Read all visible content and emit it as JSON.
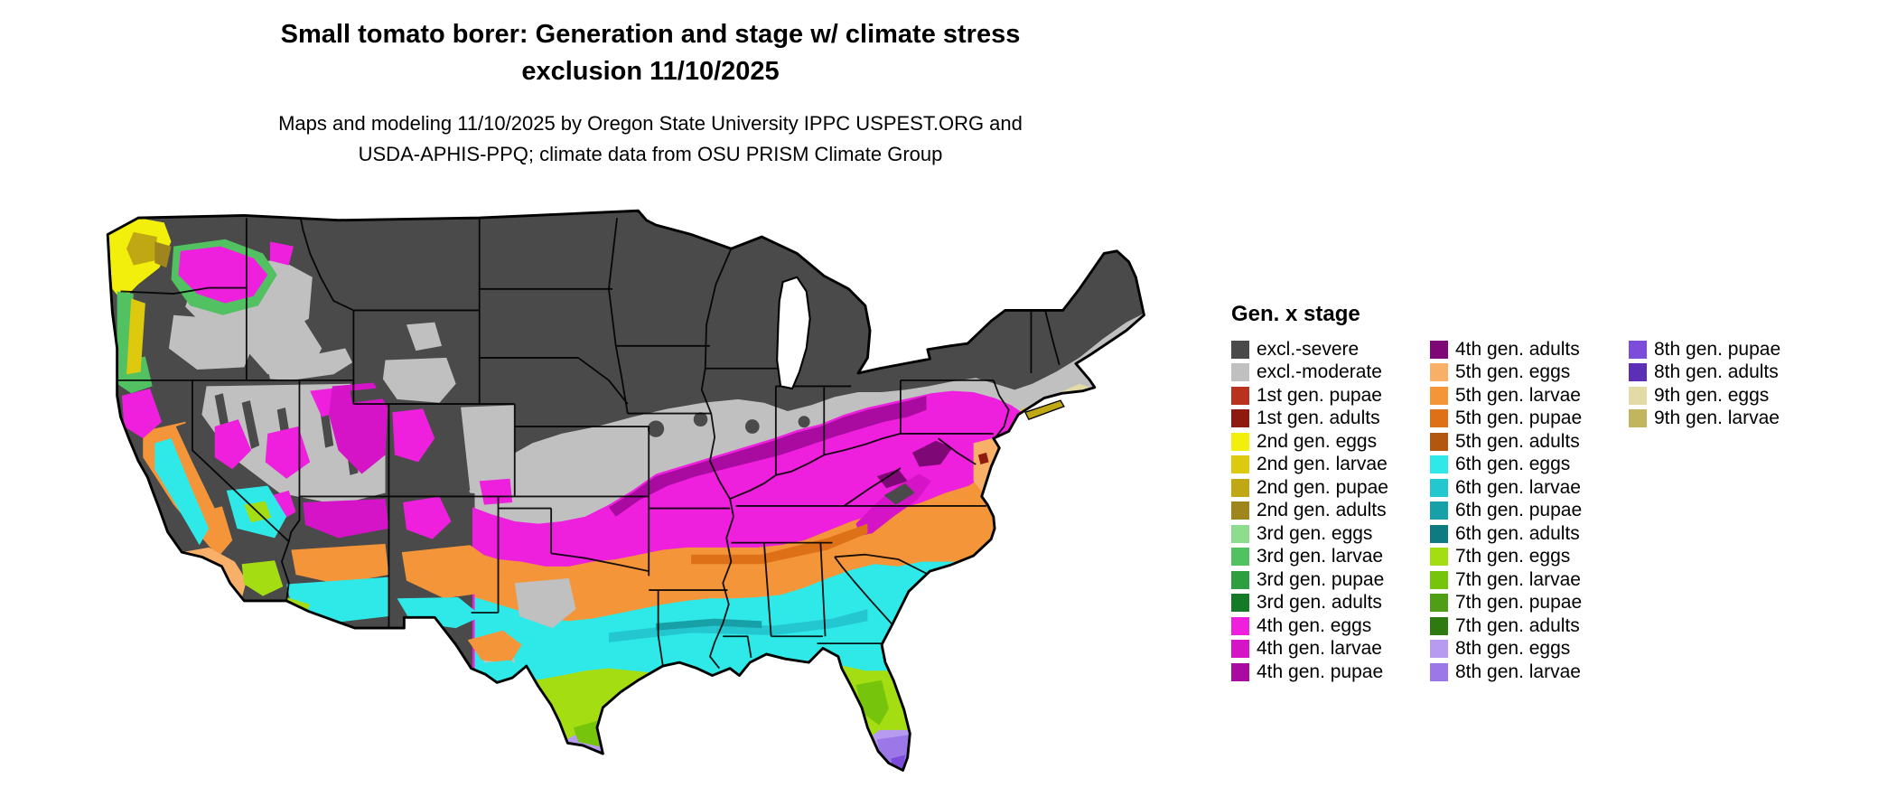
{
  "title": {
    "line1": "Small tomato borer: Generation and stage w/ climate stress",
    "line2": "exclusion 11/10/2025"
  },
  "subtitle": {
    "line1": "Maps and modeling 11/10/2025 by Oregon State University IPPC USPEST.ORG and",
    "line2": "USDA-APHIS-PPQ; climate data from OSU PRISM Climate Group"
  },
  "legend": {
    "title": "Gen. x stage",
    "columns": [
      [
        {
          "label": "excl.-severe",
          "color_key": "excl_severe"
        },
        {
          "label": "excl.-moderate",
          "color_key": "excl_moderate"
        },
        {
          "label": "1st gen. pupae",
          "color_key": "g1_pupae"
        },
        {
          "label": "1st gen. adults",
          "color_key": "g1_adults"
        },
        {
          "label": "2nd gen. eggs",
          "color_key": "g2_eggs"
        },
        {
          "label": "2nd gen. larvae",
          "color_key": "g2_larvae"
        },
        {
          "label": "2nd gen. pupae",
          "color_key": "g2_pupae"
        },
        {
          "label": "2nd gen. adults",
          "color_key": "g2_adults"
        },
        {
          "label": "3rd gen. eggs",
          "color_key": "g3_eggs"
        },
        {
          "label": "3rd gen. larvae",
          "color_key": "g3_larvae"
        },
        {
          "label": "3rd gen. pupae",
          "color_key": "g3_pupae"
        },
        {
          "label": "3rd gen. adults",
          "color_key": "g3_adults"
        },
        {
          "label": "4th gen. eggs",
          "color_key": "g4_eggs"
        },
        {
          "label": "4th gen. larvae",
          "color_key": "g4_larvae"
        },
        {
          "label": "4th gen. pupae",
          "color_key": "g4_pupae"
        }
      ],
      [
        {
          "label": "4th gen. adults",
          "color_key": "g4_adults"
        },
        {
          "label": "5th gen. eggs",
          "color_key": "g5_eggs"
        },
        {
          "label": "5th gen. larvae",
          "color_key": "g5_larvae"
        },
        {
          "label": "5th gen. pupae",
          "color_key": "g5_pupae"
        },
        {
          "label": "5th gen. adults",
          "color_key": "g5_adults"
        },
        {
          "label": "6th gen. eggs",
          "color_key": "g6_eggs"
        },
        {
          "label": "6th gen. larvae",
          "color_key": "g6_larvae"
        },
        {
          "label": "6th gen. pupae",
          "color_key": "g6_pupae"
        },
        {
          "label": "6th gen. adults",
          "color_key": "g6_adults"
        },
        {
          "label": "7th gen. eggs",
          "color_key": "g7_eggs"
        },
        {
          "label": "7th gen. larvae",
          "color_key": "g7_larvae"
        },
        {
          "label": "7th gen. pupae",
          "color_key": "g7_pupae"
        },
        {
          "label": "7th gen. adults",
          "color_key": "g7_adults"
        },
        {
          "label": "8th gen. eggs",
          "color_key": "g8_eggs"
        },
        {
          "label": "8th gen. larvae",
          "color_key": "g8_larvae"
        }
      ],
      [
        {
          "label": "8th gen. pupae",
          "color_key": "g8_pupae"
        },
        {
          "label": "8th gen. adults",
          "color_key": "g8_adults"
        },
        {
          "label": "9th gen. eggs",
          "color_key": "g9_eggs"
        },
        {
          "label": "9th gen. larvae",
          "color_key": "g9_larvae"
        }
      ]
    ]
  },
  "palette": {
    "excl_severe": "#4a4a4a",
    "excl_moderate": "#c0c0c0",
    "g1_pupae": "#b8321e",
    "g1_adults": "#8f1b10",
    "g2_eggs": "#f2ef0c",
    "g2_larvae": "#ddc90e",
    "g2_pupae": "#c0a714",
    "g2_adults": "#9e851c",
    "g3_eggs": "#8edc8e",
    "g3_larvae": "#52c162",
    "g3_pupae": "#2f9e40",
    "g3_adults": "#157a28",
    "g4_eggs": "#ee1fdd",
    "g4_larvae": "#d414c6",
    "g4_pupae": "#a90ba0",
    "g4_adults": "#7d0876",
    "g5_eggs": "#f8b068",
    "g5_larvae": "#f49539",
    "g5_pupae": "#de7117",
    "g5_adults": "#b3560e",
    "g6_eggs": "#2fe9e9",
    "g6_larvae": "#24c6cf",
    "g6_pupae": "#18a0a8",
    "g6_adults": "#0e7a82",
    "g7_eggs": "#a4de12",
    "g7_larvae": "#77c40c",
    "g7_pupae": "#509e15",
    "g7_adults": "#2f7a10",
    "g8_eggs": "#b69bf0",
    "g8_larvae": "#9b77e8",
    "g8_pupae": "#7c4dda",
    "g8_adults": "#5c30b6",
    "g9_eggs": "#e2dba6",
    "g9_larvae": "#c1b55e"
  }
}
